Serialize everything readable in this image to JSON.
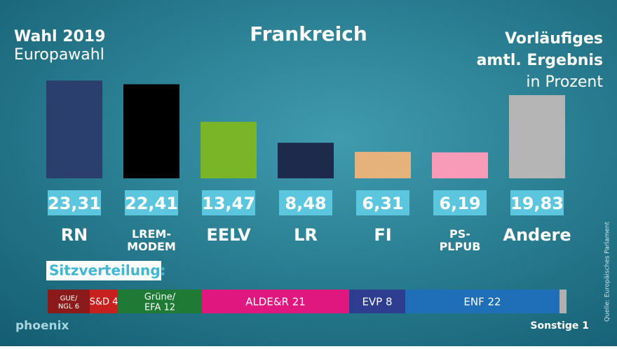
{
  "header": {
    "election": "Wahl 2019",
    "subtitle": "Europawahl",
    "country": "Frankreich",
    "status_1": "Vorläufiges",
    "status_2": "amtl. Ergebnis",
    "unit": "in Prozent"
  },
  "chart_data": [
    {
      "type": "bar",
      "categories": [
        "RN",
        "LREM-\nMODEM",
        "EELV",
        "LR",
        "FI",
        "PS-\nPLPUB",
        "Andere"
      ],
      "values": [
        23.31,
        22.41,
        13.47,
        8.48,
        6.31,
        6.19,
        19.83
      ],
      "value_labels": [
        "23,31",
        "22,41",
        "13,47",
        "8,48",
        "6,31",
        "6,19",
        "19,83"
      ],
      "colors": [
        "#2b3f6e",
        "#000000",
        "#79b527",
        "#1e2a4c",
        "#e6b27c",
        "#f79bb8",
        "#b5b5b5"
      ]
    },
    {
      "type": "stacked-bar",
      "title": "Sitzverteilung:",
      "categories": [
        "GUE/NGL",
        "S&D",
        "Grüne/EFA",
        "ALDE&R",
        "EVP",
        "ENF",
        "Sonstige"
      ],
      "values": [
        6,
        4,
        12,
        21,
        8,
        22,
        1
      ],
      "value_labels": [
        "GUE/\nNGL 6",
        "S&D 4",
        "Grüne/\nEFA 12",
        "ALDE&R 21",
        "EVP 8",
        "ENF 22",
        "Sonstige 1"
      ],
      "colors": [
        "#8b1a1a",
        "#c8201f",
        "#1e7a34",
        "#e0177f",
        "#2e3d8f",
        "#1f6fb8",
        "#b0b0b0"
      ]
    }
  ],
  "footer": {
    "brand": "phoenix",
    "source": "Quelle: Europäisches Parlament"
  }
}
